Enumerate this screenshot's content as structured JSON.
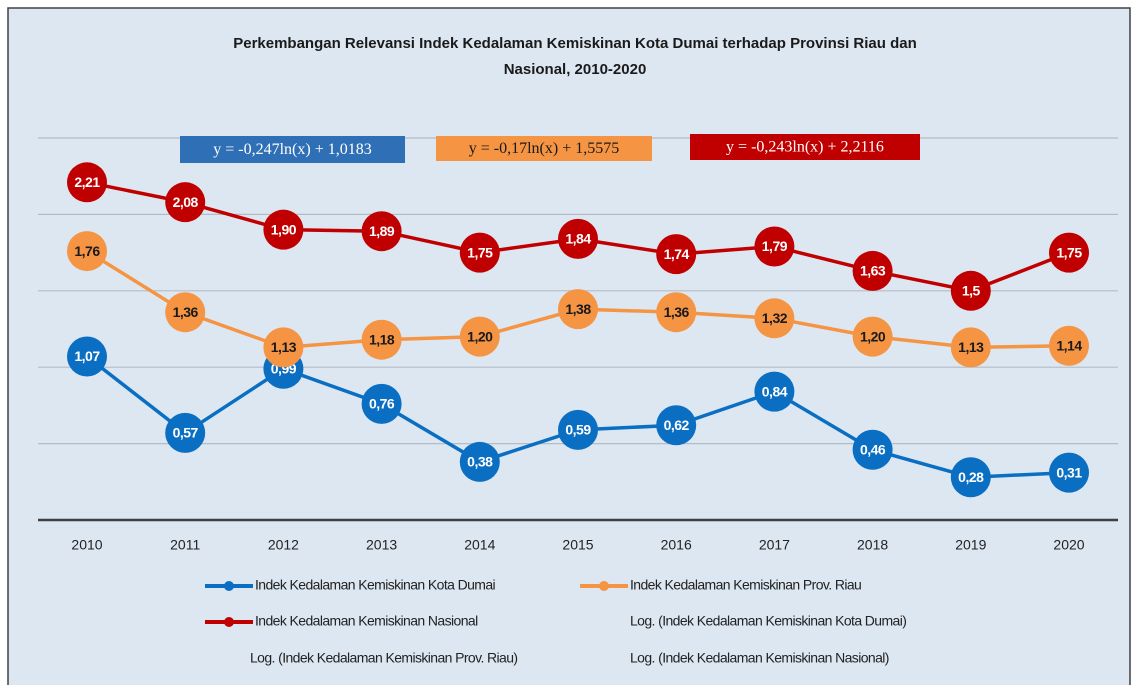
{
  "chart_data": {
    "type": "line",
    "title": [
      "Perkembangan Relevansi Indek Kedalaman Kemiskinan Kota Dumai terhadap Provinsi Riau dan",
      "Nasional, 2010-2020"
    ],
    "categories": [
      "2010",
      "2011",
      "2012",
      "2013",
      "2014",
      "2015",
      "2016",
      "2017",
      "2018",
      "2019",
      "2020"
    ],
    "ylim": [
      0,
      2.5
    ],
    "yticks": [
      0,
      0.5,
      1,
      1.5,
      2,
      2.5
    ],
    "grid": true,
    "series": [
      {
        "name": "Indek Kedalaman Kemiskinan Kota Dumai",
        "color": "#0a6fc2",
        "values": [
          1.07,
          0.57,
          0.99,
          0.76,
          0.38,
          0.59,
          0.62,
          0.84,
          0.46,
          0.28,
          0.31
        ],
        "value_labels": [
          "1,07",
          "0,57",
          "0,99",
          "0,76",
          "0,38",
          "0,59",
          "0,62",
          "0,84",
          "0,46",
          "0,28",
          "0,31"
        ]
      },
      {
        "name": "Indek Kedalaman Kemiskinan Prov. Riau",
        "color": "#f59443",
        "values": [
          1.76,
          1.36,
          1.13,
          1.18,
          1.2,
          1.38,
          1.36,
          1.32,
          1.2,
          1.13,
          1.14
        ],
        "value_labels": [
          "1,76",
          "1,36",
          "1,13",
          "1,18",
          "1,20",
          "1,38",
          "1,36",
          "1,32",
          "1,20",
          "1,13",
          "1,14"
        ]
      },
      {
        "name": "Indek Kedalaman Kemiskinan Nasional",
        "color": "#c00000",
        "values": [
          2.21,
          2.08,
          1.9,
          1.89,
          1.75,
          1.84,
          1.74,
          1.79,
          1.63,
          1.5,
          1.75
        ],
        "value_labels": [
          "2,21",
          "2,08",
          "1,90",
          "1,89",
          "1,75",
          "1,84",
          "1,74",
          "1,79",
          "1,63",
          "1,5",
          "1,75"
        ]
      }
    ],
    "trendlines": [
      {
        "name": "Log. (Indek Kedalaman Kemiskinan Kota Dumai)",
        "equation": "y = -0,247ln(x) + 1,0183",
        "color": "#2e6fb5"
      },
      {
        "name": "Log. (Indek Kedalaman Kemiskinan Prov. Riau)",
        "equation": "y = -0,17ln(x) + 1,5575",
        "color": "#f59443"
      },
      {
        "name": "Log. (Indek Kedalaman Kemiskinan Nasional)",
        "equation": "y = -0,243ln(x) + 2,2116",
        "color": "#c00000"
      }
    ]
  }
}
